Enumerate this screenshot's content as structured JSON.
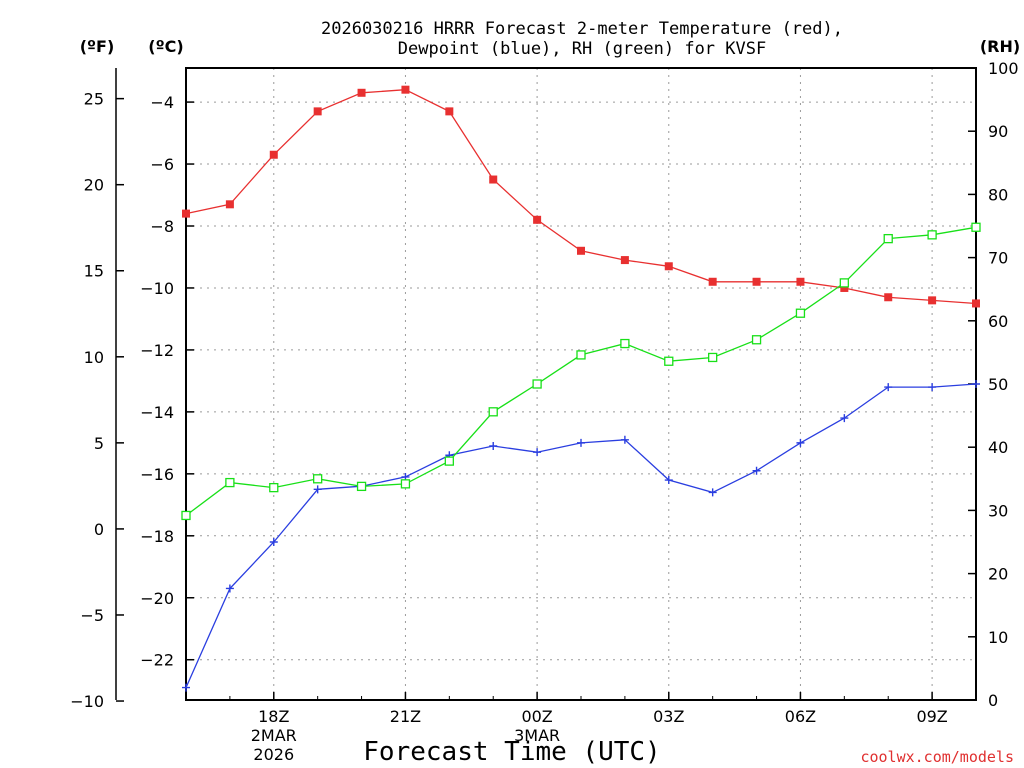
{
  "chart_data": {
    "type": "line",
    "title_line1": "2026030216 HRRR Forecast 2-meter Temperature (red),",
    "title_line2": "Dewpoint (blue), RH (green) for KVSF",
    "xlabel": "Forecast Time (UTC)",
    "credit": "coolwx.com/models",
    "left_axis_f": {
      "unit": "(ºF)",
      "ticks": [
        25,
        20,
        15,
        10,
        5,
        0,
        -5,
        -10
      ]
    },
    "left_axis_c": {
      "unit": "(ºC)",
      "ticks": [
        -4,
        -6,
        -8,
        -10,
        -12,
        -14,
        -16,
        -18,
        -20,
        -22
      ],
      "ylim": [
        -23.3,
        -2.9
      ]
    },
    "right_axis": {
      "unit": "(RH)",
      "ticks": [
        100,
        90,
        80,
        70,
        60,
        50,
        40,
        30,
        20,
        10,
        0
      ],
      "ylim": [
        0,
        100
      ]
    },
    "x_hours": [
      0,
      1,
      2,
      3,
      4,
      5,
      6,
      7,
      8,
      9,
      10,
      11,
      12,
      13,
      14,
      15,
      16,
      17,
      18
    ],
    "x_ticks": [
      {
        "hour": 2,
        "label": "18Z",
        "date1": "2MAR",
        "date2": "2026"
      },
      {
        "hour": 5,
        "label": "21Z"
      },
      {
        "hour": 8,
        "label": "00Z",
        "date1": "3MAR"
      },
      {
        "hour": 11,
        "label": "03Z"
      },
      {
        "hour": 14,
        "label": "06Z"
      },
      {
        "hour": 17,
        "label": "09Z"
      }
    ],
    "series": [
      {
        "name": "Temperature",
        "color": "#e83030",
        "units": "C",
        "values": [
          -7.6,
          -7.3,
          -5.7,
          -4.3,
          -3.7,
          -3.6,
          -4.3,
          -6.5,
          -7.8,
          -8.8,
          -9.1,
          -9.3,
          -9.8,
          -9.8,
          -9.8,
          -10.0,
          -10.3,
          -10.4,
          -10.5
        ]
      },
      {
        "name": "Dewpoint",
        "color": "#2a3ee0",
        "units": "C",
        "values": [
          -22.9,
          -19.7,
          -18.2,
          -16.5,
          -16.4,
          -16.1,
          -15.4,
          -15.1,
          -15.3,
          -15.0,
          -14.9,
          -16.2,
          -16.6,
          -15.9,
          -15.0,
          -14.2,
          -13.2,
          -13.2,
          -13.1
        ]
      },
      {
        "name": "RH",
        "color": "#18e018",
        "units": "%",
        "values": [
          29.2,
          34.4,
          33.6,
          35.0,
          33.8,
          34.2,
          37.8,
          45.6,
          50.0,
          54.6,
          56.4,
          53.6,
          54.2,
          57.0,
          61.2,
          66.0,
          73.0,
          73.6,
          74.8
        ]
      }
    ]
  }
}
